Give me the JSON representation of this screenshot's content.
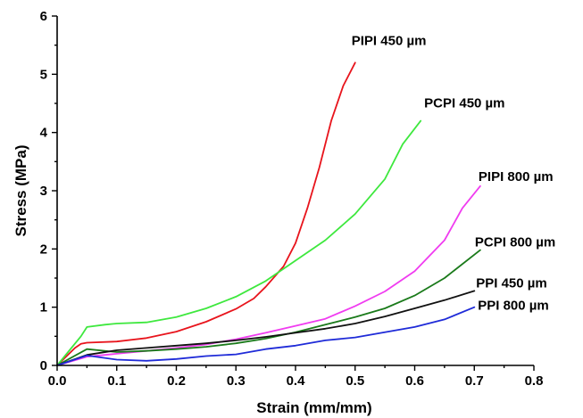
{
  "chart_data": {
    "type": "line",
    "xlabel": "Strain (mm/mm)",
    "ylabel": "Stress (MPa)",
    "xlim": [
      0.0,
      0.8
    ],
    "ylim": [
      0,
      6
    ],
    "xticks": [
      0.0,
      0.1,
      0.2,
      0.3,
      0.4,
      0.5,
      0.6,
      0.7,
      0.8
    ],
    "xtick_labels": [
      "0.0",
      "0.1",
      "0.2",
      "0.3",
      "0.4",
      "0.5",
      "0.6",
      "0.7",
      "0.8"
    ],
    "yticks": [
      0,
      1,
      2,
      3,
      4,
      5,
      6
    ],
    "ytick_labels": [
      "0",
      "1",
      "2",
      "3",
      "4",
      "5",
      "6"
    ],
    "grid": false,
    "legend": "inline labels at curve ends",
    "series": [
      {
        "name": "PIPI 450 µm",
        "color": "#e8141c",
        "x": [
          0.0,
          0.03,
          0.04,
          0.05,
          0.1,
          0.15,
          0.2,
          0.25,
          0.3,
          0.33,
          0.35,
          0.38,
          0.4,
          0.42,
          0.44,
          0.46,
          0.48,
          0.5
        ],
        "y": [
          0.0,
          0.3,
          0.37,
          0.39,
          0.41,
          0.47,
          0.58,
          0.75,
          0.97,
          1.15,
          1.35,
          1.7,
          2.1,
          2.7,
          3.4,
          4.2,
          4.8,
          5.2
        ]
      },
      {
        "name": "PCPI 450 µm",
        "color": "#3ee83e",
        "x": [
          0.0,
          0.04,
          0.05,
          0.08,
          0.1,
          0.15,
          0.2,
          0.25,
          0.3,
          0.35,
          0.4,
          0.45,
          0.5,
          0.55,
          0.58,
          0.61
        ],
        "y": [
          0.0,
          0.5,
          0.66,
          0.7,
          0.72,
          0.74,
          0.83,
          0.98,
          1.18,
          1.45,
          1.8,
          2.15,
          2.6,
          3.2,
          3.8,
          4.2
        ]
      },
      {
        "name": "PIPI 800 µm",
        "color": "#f03cf0",
        "x": [
          0.0,
          0.05,
          0.1,
          0.15,
          0.2,
          0.25,
          0.3,
          0.35,
          0.4,
          0.45,
          0.5,
          0.55,
          0.6,
          0.65,
          0.68,
          0.71
        ],
        "y": [
          0.0,
          0.15,
          0.2,
          0.25,
          0.3,
          0.36,
          0.45,
          0.56,
          0.68,
          0.8,
          1.02,
          1.27,
          1.62,
          2.15,
          2.7,
          3.08
        ]
      },
      {
        "name": "PCPI 800 µm",
        "color": "#1a7a1a",
        "x": [
          0.0,
          0.05,
          0.1,
          0.15,
          0.2,
          0.25,
          0.3,
          0.35,
          0.4,
          0.45,
          0.5,
          0.55,
          0.6,
          0.65,
          0.71
        ],
        "y": [
          0.0,
          0.28,
          0.23,
          0.25,
          0.28,
          0.32,
          0.38,
          0.46,
          0.57,
          0.7,
          0.83,
          0.98,
          1.2,
          1.5,
          1.98
        ]
      },
      {
        "name": "PPI 450 µm",
        "color": "#111111",
        "x": [
          0.0,
          0.05,
          0.1,
          0.15,
          0.2,
          0.25,
          0.3,
          0.35,
          0.4,
          0.45,
          0.5,
          0.55,
          0.6,
          0.65,
          0.7
        ],
        "y": [
          0.0,
          0.18,
          0.26,
          0.3,
          0.34,
          0.38,
          0.43,
          0.49,
          0.56,
          0.63,
          0.72,
          0.84,
          0.98,
          1.12,
          1.28
        ]
      },
      {
        "name": "PPI 800 µm",
        "color": "#1f2bd8",
        "x": [
          0.0,
          0.05,
          0.1,
          0.15,
          0.2,
          0.25,
          0.3,
          0.35,
          0.4,
          0.45,
          0.5,
          0.55,
          0.6,
          0.65,
          0.7
        ],
        "y": [
          0.0,
          0.17,
          0.1,
          0.08,
          0.11,
          0.16,
          0.19,
          0.28,
          0.34,
          0.43,
          0.48,
          0.57,
          0.66,
          0.79,
          1.0
        ]
      }
    ]
  }
}
